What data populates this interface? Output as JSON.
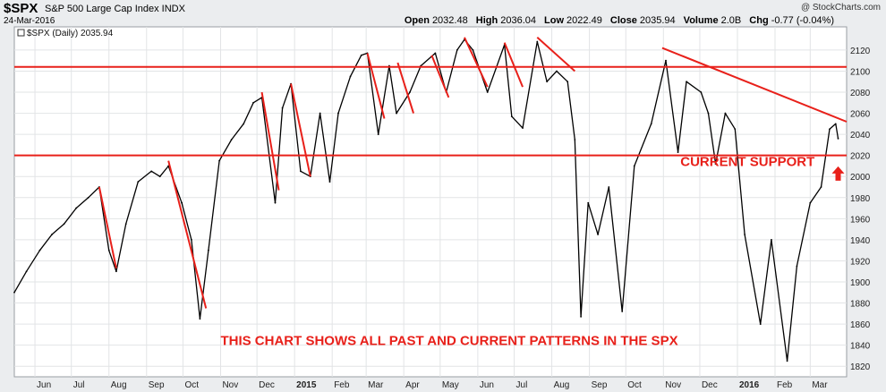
{
  "header": {
    "symbol": "$SPX",
    "name": "S&P 500 Large Cap Index  INDX",
    "date": "24-Mar-2016",
    "credit": "@ StockCharts.com",
    "ohlc": {
      "open_label": "Open",
      "open": "2032.48",
      "high_label": "High",
      "high": "2036.04",
      "low_label": "Low",
      "low": "2022.49",
      "close_label": "Close",
      "close": "2035.94",
      "volume_label": "Volume",
      "volume": "2.0B",
      "chg_label": "Chg",
      "chg": "-0.77 (-0.04%)"
    }
  },
  "colors": {
    "price": "#000000",
    "annotation": "#e8201a",
    "grid": "#e2e4e6",
    "background": "#ffffff",
    "frame": "#ebedef"
  },
  "chart_data": {
    "type": "line",
    "title": "$SPX (Daily) 2035.94",
    "ylim": [
      1810,
      2142
    ],
    "y_ticks": [
      1820,
      1840,
      1860,
      1880,
      1900,
      1920,
      1940,
      1960,
      1980,
      2000,
      2020,
      2040,
      2060,
      2080,
      2100,
      2120
    ],
    "x_ticks": [
      {
        "date": "2014-06-01",
        "label": "Jun",
        "bold": false
      },
      {
        "date": "2014-07-01",
        "label": "Jul",
        "bold": false
      },
      {
        "date": "2014-08-01",
        "label": "Aug",
        "bold": false
      },
      {
        "date": "2014-09-01",
        "label": "Sep",
        "bold": false
      },
      {
        "date": "2014-10-01",
        "label": "Oct",
        "bold": false
      },
      {
        "date": "2014-11-01",
        "label": "Nov",
        "bold": false
      },
      {
        "date": "2014-12-01",
        "label": "Dec",
        "bold": false
      },
      {
        "date": "2015-01-01",
        "label": "2015",
        "bold": true
      },
      {
        "date": "2015-02-01",
        "label": "Feb",
        "bold": false
      },
      {
        "date": "2015-03-01",
        "label": "Mar",
        "bold": false
      },
      {
        "date": "2015-04-01",
        "label": "Apr",
        "bold": false
      },
      {
        "date": "2015-05-01",
        "label": "May",
        "bold": false
      },
      {
        "date": "2015-06-01",
        "label": "Jun",
        "bold": false
      },
      {
        "date": "2015-07-01",
        "label": "Jul",
        "bold": false
      },
      {
        "date": "2015-08-01",
        "label": "Aug",
        "bold": false
      },
      {
        "date": "2015-09-01",
        "label": "Sep",
        "bold": false
      },
      {
        "date": "2015-10-01",
        "label": "Oct",
        "bold": false
      },
      {
        "date": "2015-11-01",
        "label": "Nov",
        "bold": false
      },
      {
        "date": "2015-12-01",
        "label": "Dec",
        "bold": false
      },
      {
        "date": "2016-01-01",
        "label": "2016",
        "bold": true
      },
      {
        "date": "2016-02-01",
        "label": "Feb",
        "bold": false
      },
      {
        "date": "2016-03-01",
        "label": "Mar",
        "bold": false
      }
    ],
    "series": [
      {
        "values": [
          {
            "x": "2014-05-15",
            "y": 1890
          },
          {
            "x": "2014-05-25",
            "y": 1910
          },
          {
            "x": "2014-06-05",
            "y": 1930
          },
          {
            "x": "2014-06-15",
            "y": 1945
          },
          {
            "x": "2014-06-25",
            "y": 1955
          },
          {
            "x": "2014-07-05",
            "y": 1970
          },
          {
            "x": "2014-07-15",
            "y": 1980
          },
          {
            "x": "2014-07-24",
            "y": 1990
          },
          {
            "x": "2014-08-01",
            "y": 1930
          },
          {
            "x": "2014-08-07",
            "y": 1910
          },
          {
            "x": "2014-08-15",
            "y": 1955
          },
          {
            "x": "2014-08-25",
            "y": 1995
          },
          {
            "x": "2014-09-05",
            "y": 2005
          },
          {
            "x": "2014-09-12",
            "y": 2000
          },
          {
            "x": "2014-09-19",
            "y": 2010
          },
          {
            "x": "2014-09-30",
            "y": 1975
          },
          {
            "x": "2014-10-08",
            "y": 1940
          },
          {
            "x": "2014-10-15",
            "y": 1865
          },
          {
            "x": "2014-10-22",
            "y": 1930
          },
          {
            "x": "2014-10-31",
            "y": 2015
          },
          {
            "x": "2014-11-10",
            "y": 2035
          },
          {
            "x": "2014-11-20",
            "y": 2050
          },
          {
            "x": "2014-11-28",
            "y": 2070
          },
          {
            "x": "2014-12-05",
            "y": 2075
          },
          {
            "x": "2014-12-16",
            "y": 1975
          },
          {
            "x": "2014-12-22",
            "y": 2065
          },
          {
            "x": "2014-12-29",
            "y": 2088
          },
          {
            "x": "2015-01-06",
            "y": 2005
          },
          {
            "x": "2015-01-14",
            "y": 2000
          },
          {
            "x": "2015-01-22",
            "y": 2060
          },
          {
            "x": "2015-01-30",
            "y": 1995
          },
          {
            "x": "2015-02-06",
            "y": 2060
          },
          {
            "x": "2015-02-16",
            "y": 2095
          },
          {
            "x": "2015-02-25",
            "y": 2115
          },
          {
            "x": "2015-03-02",
            "y": 2117
          },
          {
            "x": "2015-03-11",
            "y": 2040
          },
          {
            "x": "2015-03-20",
            "y": 2105
          },
          {
            "x": "2015-03-26",
            "y": 2060
          },
          {
            "x": "2015-04-06",
            "y": 2080
          },
          {
            "x": "2015-04-15",
            "y": 2105
          },
          {
            "x": "2015-04-27",
            "y": 2117
          },
          {
            "x": "2015-05-06",
            "y": 2080
          },
          {
            "x": "2015-05-15",
            "y": 2120
          },
          {
            "x": "2015-05-21",
            "y": 2130
          },
          {
            "x": "2015-05-28",
            "y": 2120
          },
          {
            "x": "2015-06-09",
            "y": 2080
          },
          {
            "x": "2015-06-23",
            "y": 2125
          },
          {
            "x": "2015-06-29",
            "y": 2057
          },
          {
            "x": "2015-07-08",
            "y": 2046
          },
          {
            "x": "2015-07-20",
            "y": 2128
          },
          {
            "x": "2015-07-28",
            "y": 2090
          },
          {
            "x": "2015-08-05",
            "y": 2100
          },
          {
            "x": "2015-08-14",
            "y": 2090
          },
          {
            "x": "2015-08-20",
            "y": 2035
          },
          {
            "x": "2015-08-25",
            "y": 1867
          },
          {
            "x": "2015-08-31",
            "y": 1975
          },
          {
            "x": "2015-09-08",
            "y": 1945
          },
          {
            "x": "2015-09-17",
            "y": 1990
          },
          {
            "x": "2015-09-28",
            "y": 1872
          },
          {
            "x": "2015-10-08",
            "y": 2010
          },
          {
            "x": "2015-10-22",
            "y": 2050
          },
          {
            "x": "2015-11-03",
            "y": 2110
          },
          {
            "x": "2015-11-13",
            "y": 2023
          },
          {
            "x": "2015-11-20",
            "y": 2090
          },
          {
            "x": "2015-12-02",
            "y": 2080
          },
          {
            "x": "2015-12-08",
            "y": 2060
          },
          {
            "x": "2015-12-14",
            "y": 2012
          },
          {
            "x": "2015-12-22",
            "y": 2060
          },
          {
            "x": "2015-12-30",
            "y": 2045
          },
          {
            "x": "2016-01-07",
            "y": 1945
          },
          {
            "x": "2016-01-20",
            "y": 1860
          },
          {
            "x": "2016-01-29",
            "y": 1940
          },
          {
            "x": "2016-02-11",
            "y": 1825
          },
          {
            "x": "2016-02-19",
            "y": 1915
          },
          {
            "x": "2016-03-01",
            "y": 1975
          },
          {
            "x": "2016-03-10",
            "y": 1990
          },
          {
            "x": "2016-03-17",
            "y": 2045
          },
          {
            "x": "2016-03-22",
            "y": 2050
          },
          {
            "x": "2016-03-24",
            "y": 2036
          }
        ]
      }
    ],
    "annotations": {
      "horizontal_lines": [
        2104,
        2020
      ],
      "trend_lines": [
        {
          "x1": "2014-07-24",
          "y1": 1990,
          "x2": "2014-08-07",
          "y2": 1913
        },
        {
          "x1": "2014-09-19",
          "y1": 2015,
          "x2": "2014-10-20",
          "y2": 1875
        },
        {
          "x1": "2014-12-05",
          "y1": 2080,
          "x2": "2014-12-19",
          "y2": 1987
        },
        {
          "x1": "2014-12-29",
          "y1": 2088,
          "x2": "2015-01-14",
          "y2": 2000
        },
        {
          "x1": "2015-03-02",
          "y1": 2117,
          "x2": "2015-03-16",
          "y2": 2055
        },
        {
          "x1": "2015-03-27",
          "y1": 2108,
          "x2": "2015-04-09",
          "y2": 2060
        },
        {
          "x1": "2015-04-24",
          "y1": 2115,
          "x2": "2015-05-08",
          "y2": 2075
        },
        {
          "x1": "2015-05-21",
          "y1": 2132,
          "x2": "2015-06-09",
          "y2": 2085
        },
        {
          "x1": "2015-06-23",
          "y1": 2127,
          "x2": "2015-07-08",
          "y2": 2085
        },
        {
          "x1": "2015-07-20",
          "y1": 2132,
          "x2": "2015-08-20",
          "y2": 2100
        },
        {
          "x1": "2015-10-31",
          "y1": 2122,
          "x2": "2016-03-31",
          "y2": 2052
        }
      ],
      "arrow": {
        "x": "2016-03-24",
        "y": 2002
      },
      "texts": [
        {
          "id": "current-support",
          "text": "CURRENT SUPPORT",
          "x": "2015-11-15",
          "y": 2010
        },
        {
          "id": "patterns-note",
          "text": "THIS CHART SHOWS ALL PAST AND CURRENT PATTERNS IN THE SPX",
          "x": "2014-11-01",
          "y": 1840
        }
      ]
    }
  }
}
